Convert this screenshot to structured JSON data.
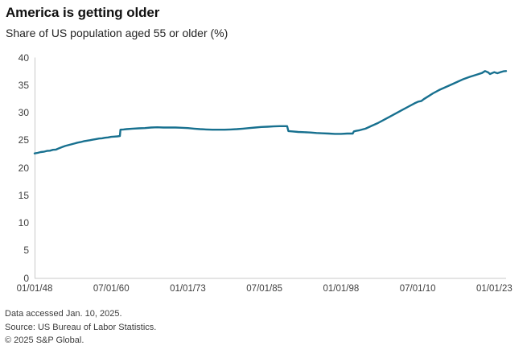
{
  "header": {
    "title": "America is getting older",
    "subtitle": "Share of US population aged 55 or older (%)"
  },
  "footer": {
    "lines": [
      "Data accessed Jan. 10, 2025.",
      "Source: US Bureau of Labor Statistics.",
      "© 2025 S&P Global."
    ]
  },
  "colors": {
    "line": "#17708f",
    "axis": "#c9c9c9",
    "tick_text": "#404040",
    "title_text": "#111111",
    "footer_text": "#3c3c3c"
  },
  "chart_data": {
    "type": "line",
    "title": "America is getting older",
    "subtitle": "Share of US population aged 55 or older (%)",
    "series_name": "Share of US population aged 55 or older (%)",
    "x_unit": "decimal_year",
    "xlim": [
      1948.0,
      2024.92
    ],
    "ylim": [
      0,
      40
    ],
    "yticks": [
      0,
      5,
      10,
      15,
      20,
      25,
      30,
      35,
      40
    ],
    "xticks": [
      {
        "label": "01/01/48",
        "year": 1948.0
      },
      {
        "label": "07/01/60",
        "year": 1960.5
      },
      {
        "label": "01/01/73",
        "year": 1973.0
      },
      {
        "label": "07/01/85",
        "year": 1985.5
      },
      {
        "label": "01/01/98",
        "year": 1998.0
      },
      {
        "label": "07/01/10",
        "year": 2010.5
      },
      {
        "label": "01/01/23",
        "year": 2023.0
      }
    ],
    "grid": false,
    "legend": "none",
    "x": [
      1948.0,
      1948.5,
      1949.0,
      1949.5,
      1950.0,
      1950.5,
      1951.0,
      1951.5,
      1952.0,
      1952.5,
      1953.0,
      1953.5,
      1954.0,
      1954.5,
      1955.0,
      1955.5,
      1956.0,
      1956.5,
      1957.0,
      1957.5,
      1958.0,
      1958.5,
      1959.0,
      1959.5,
      1960.0,
      1960.5,
      1961.0,
      1961.5,
      1961.92,
      1962.0,
      1962.5,
      1963.0,
      1964.0,
      1965.0,
      1966.0,
      1967.0,
      1968.0,
      1969.0,
      1970.0,
      1971.0,
      1972.0,
      1973.0,
      1974.0,
      1975.0,
      1976.0,
      1977.0,
      1978.0,
      1979.0,
      1980.0,
      1981.0,
      1982.0,
      1983.0,
      1984.0,
      1985.0,
      1986.0,
      1987.0,
      1988.0,
      1989.2,
      1989.4,
      1990.0,
      1991.0,
      1992.0,
      1993.0,
      1994.0,
      1995.0,
      1996.0,
      1997.0,
      1998.0,
      1999.0,
      1999.9,
      2000.1,
      2000.5,
      2001.0,
      2002.0,
      2003.0,
      2004.0,
      2005.0,
      2006.0,
      2007.0,
      2008.0,
      2009.0,
      2010.0,
      2010.6,
      2011.1,
      2011.5,
      2012.0,
      2013.0,
      2014.0,
      2015.0,
      2016.0,
      2017.0,
      2018.0,
      2019.0,
      2020.0,
      2021.0,
      2021.5,
      2022.0,
      2022.3,
      2023.0,
      2023.5,
      2024.0,
      2024.5,
      2024.92
    ],
    "values": [
      22.6,
      22.7,
      22.85,
      22.9,
      23.05,
      23.1,
      23.25,
      23.3,
      23.55,
      23.75,
      23.95,
      24.1,
      24.25,
      24.4,
      24.55,
      24.65,
      24.8,
      24.9,
      25.0,
      25.1,
      25.2,
      25.3,
      25.35,
      25.45,
      25.5,
      25.6,
      25.65,
      25.7,
      25.75,
      26.9,
      26.95,
      27.0,
      27.1,
      27.15,
      27.2,
      27.3,
      27.35,
      27.3,
      27.3,
      27.3,
      27.25,
      27.2,
      27.1,
      27.0,
      26.95,
      26.9,
      26.9,
      26.9,
      26.95,
      27.0,
      27.1,
      27.2,
      27.3,
      27.4,
      27.45,
      27.5,
      27.55,
      27.55,
      26.65,
      26.6,
      26.5,
      26.45,
      26.4,
      26.3,
      26.25,
      26.2,
      26.15,
      26.15,
      26.2,
      26.2,
      26.6,
      26.7,
      26.8,
      27.1,
      27.6,
      28.1,
      28.7,
      29.3,
      29.9,
      30.5,
      31.1,
      31.7,
      32.0,
      32.1,
      32.45,
      32.8,
      33.5,
      34.1,
      34.6,
      35.1,
      35.6,
      36.1,
      36.5,
      36.85,
      37.2,
      37.55,
      37.3,
      37.0,
      37.35,
      37.15,
      37.35,
      37.5,
      37.55
    ]
  }
}
